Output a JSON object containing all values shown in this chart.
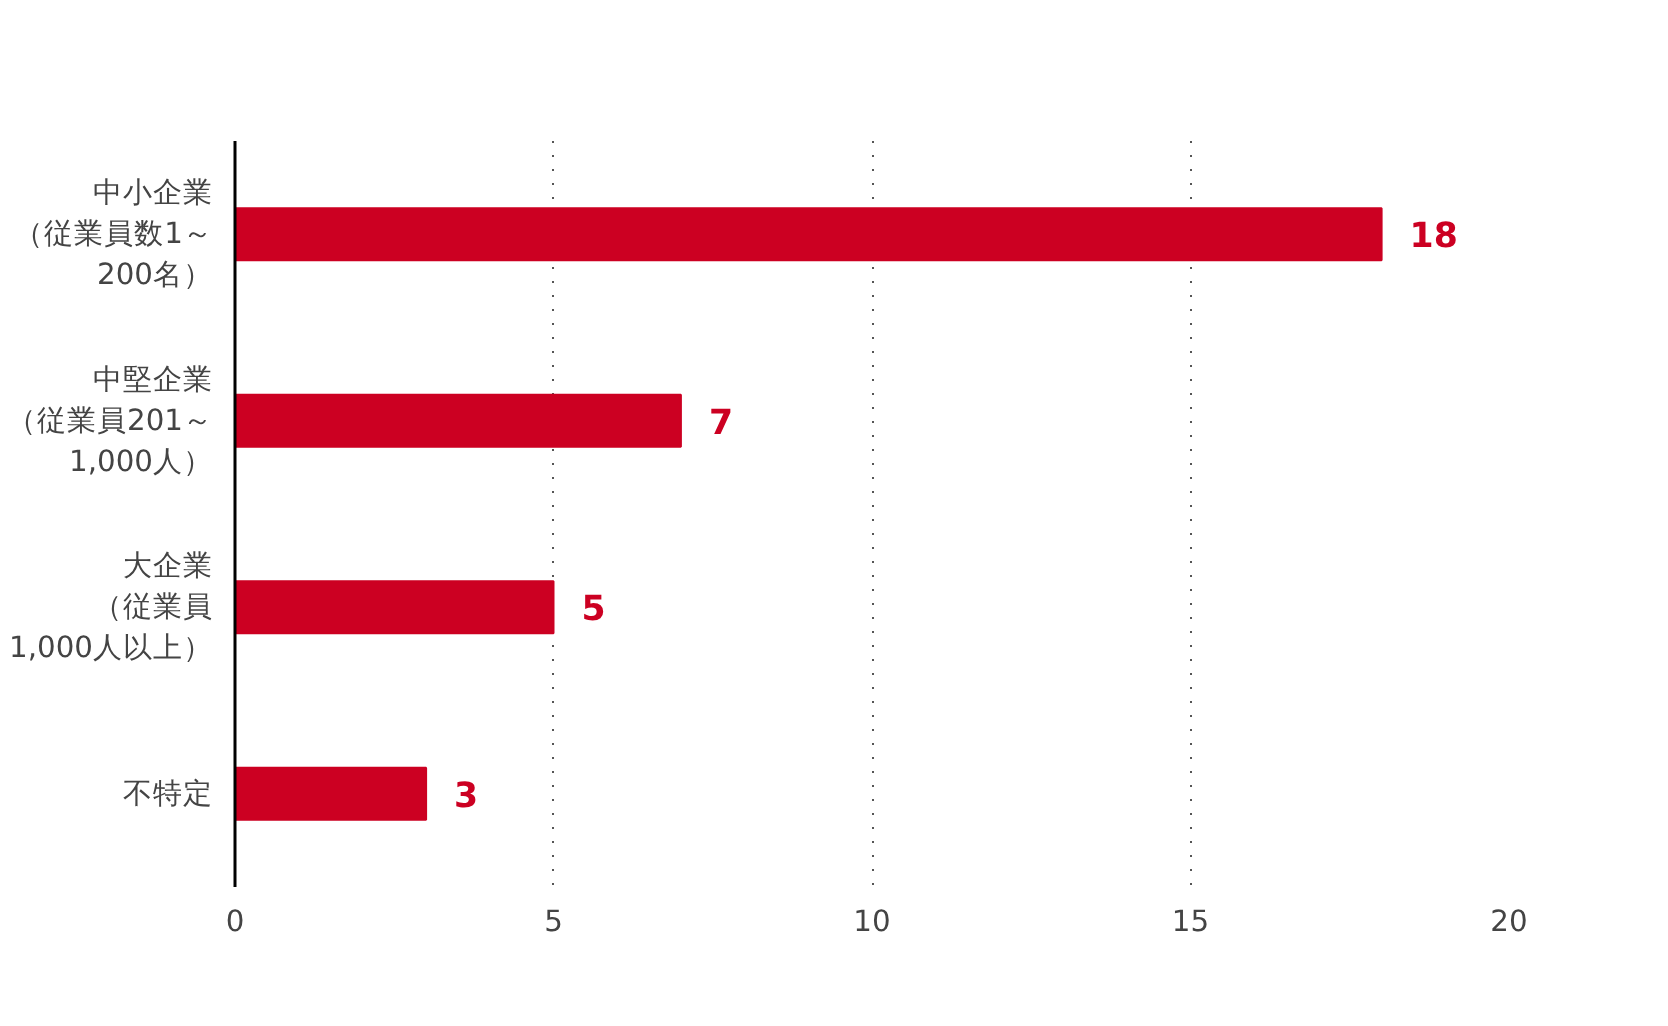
{
  "chart_data": {
    "type": "bar",
    "orientation": "horizontal",
    "categories": [
      "中小企業（従業員数1～200名）",
      "中堅企業（従業員201～1,000人）",
      "大企業（従業員1,000人以上）",
      "不特定"
    ],
    "values": [
      18,
      7,
      5,
      3
    ],
    "color": "#cc0022",
    "xlim": [
      0,
      20
    ],
    "xticks": [
      0,
      5,
      10,
      15,
      20
    ],
    "grid": "x",
    "data_labels": true
  }
}
